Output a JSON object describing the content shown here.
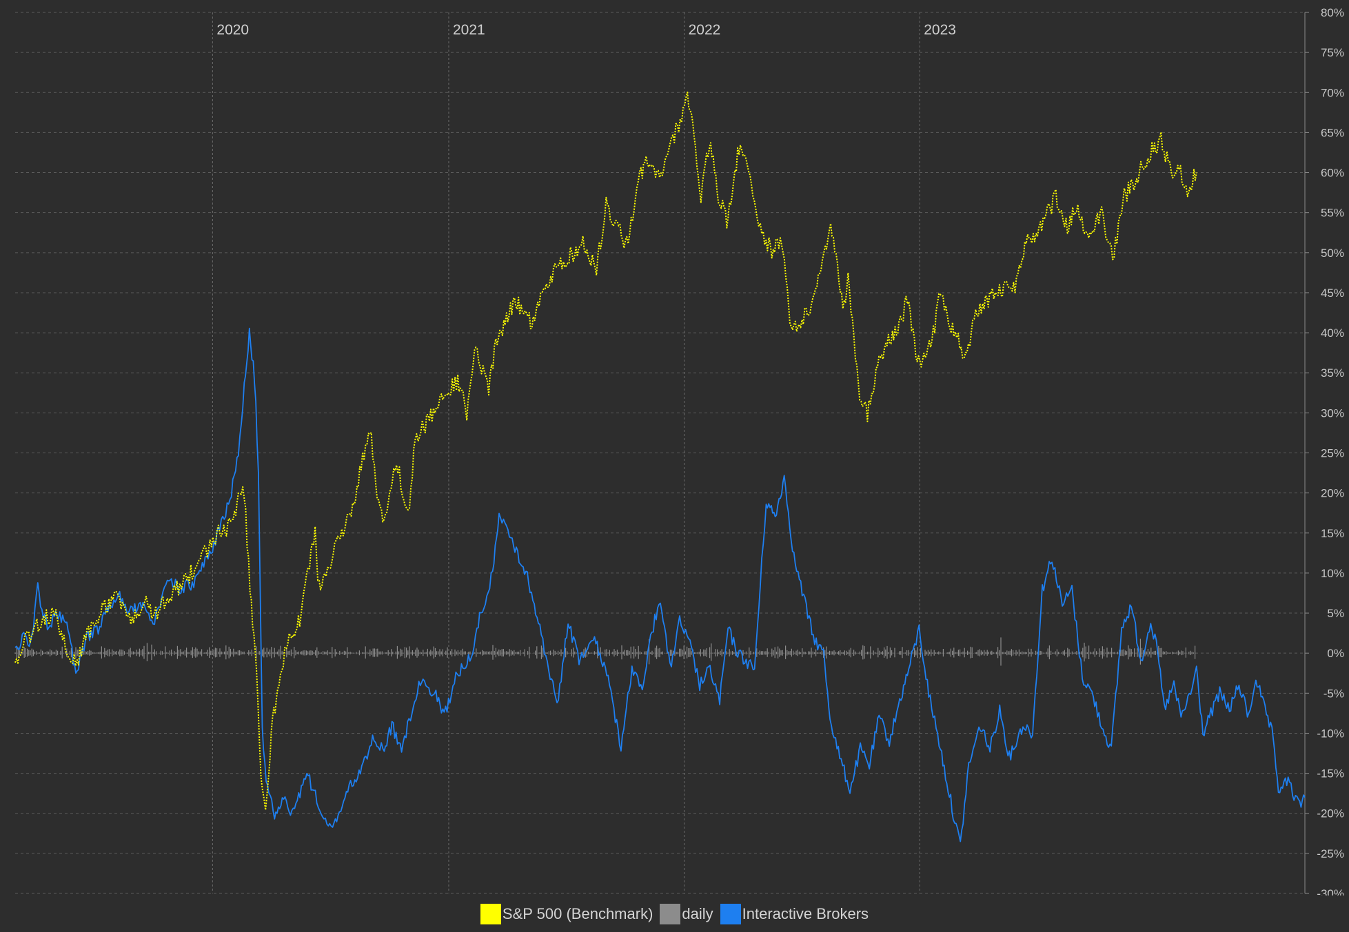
{
  "chart_data": {
    "type": "line",
    "x_axis": {
      "ticks": [
        "2020",
        "2021",
        "2022",
        "2023"
      ]
    },
    "y_axis": {
      "ylim": [
        -30,
        80
      ],
      "ticks": [
        "80%",
        "75%",
        "70%",
        "65%",
        "60%",
        "55%",
        "50%",
        "45%",
        "40%",
        "35%",
        "30%",
        "25%",
        "20%",
        "15%",
        "10%",
        "5%",
        "0%",
        "-5%",
        "-10%",
        "-15%",
        "-20%",
        "-25%",
        "-30%"
      ]
    },
    "grid": true,
    "legend_position": "bottom-center",
    "series": [
      {
        "name": "S&P 500 (Benchmark)",
        "color": "#ffff00",
        "style": "dotted",
        "points": [
          [
            "2019-03-01",
            -1
          ],
          [
            "2019-03-20",
            2
          ],
          [
            "2019-04-10",
            4
          ],
          [
            "2019-05-01",
            5
          ],
          [
            "2019-05-20",
            0
          ],
          [
            "2019-06-05",
            -1
          ],
          [
            "2019-06-25",
            3
          ],
          [
            "2019-07-20",
            6
          ],
          [
            "2019-08-10",
            7
          ],
          [
            "2019-08-25",
            4
          ],
          [
            "2019-09-20",
            6
          ],
          [
            "2019-10-05",
            5
          ],
          [
            "2019-10-25",
            7
          ],
          [
            "2019-11-20",
            9
          ],
          [
            "2019-12-15",
            12
          ],
          [
            "2020-01-10",
            15
          ],
          [
            "2020-01-31",
            16
          ],
          [
            "2020-02-10",
            19
          ],
          [
            "2020-02-19",
            20
          ],
          [
            "2020-02-28",
            8
          ],
          [
            "2020-03-09",
            -2
          ],
          [
            "2020-03-16",
            -15
          ],
          [
            "2020-03-23",
            -20
          ],
          [
            "2020-04-01",
            -10
          ],
          [
            "2020-04-15",
            -2
          ],
          [
            "2020-05-01",
            2
          ],
          [
            "2020-05-15",
            4
          ],
          [
            "2020-06-08",
            15
          ],
          [
            "2020-06-12",
            8
          ],
          [
            "2020-06-25",
            10
          ],
          [
            "2020-07-15",
            14
          ],
          [
            "2020-08-05",
            18
          ],
          [
            "2020-08-25",
            26
          ],
          [
            "2020-09-03",
            28
          ],
          [
            "2020-09-10",
            20
          ],
          [
            "2020-09-23",
            16
          ],
          [
            "2020-10-12",
            24
          ],
          [
            "2020-10-30",
            17
          ],
          [
            "2020-11-10",
            27
          ],
          [
            "2020-11-30",
            29
          ],
          [
            "2020-12-31",
            33
          ],
          [
            "2021-01-15",
            34
          ],
          [
            "2021-01-29",
            30
          ],
          [
            "2021-02-12",
            38
          ],
          [
            "2021-03-04",
            33
          ],
          [
            "2021-03-15",
            39
          ],
          [
            "2021-04-15",
            44
          ],
          [
            "2021-05-12",
            41
          ],
          [
            "2021-05-28",
            46
          ],
          [
            "2021-06-30",
            49
          ],
          [
            "2021-07-28",
            51
          ],
          [
            "2021-08-18",
            48
          ],
          [
            "2021-09-02",
            56
          ],
          [
            "2021-09-15",
            54
          ],
          [
            "2021-10-04",
            51
          ],
          [
            "2021-10-22",
            59
          ],
          [
            "2021-11-05",
            62
          ],
          [
            "2021-11-26",
            59
          ],
          [
            "2021-12-10",
            63
          ],
          [
            "2021-12-28",
            67
          ],
          [
            "2022-01-04",
            70
          ],
          [
            "2022-01-12",
            68
          ],
          [
            "2022-01-27",
            57
          ],
          [
            "2022-02-09",
            64
          ],
          [
            "2022-02-23",
            57
          ],
          [
            "2022-03-08",
            54
          ],
          [
            "2022-03-29",
            64
          ],
          [
            "2022-04-13",
            60
          ],
          [
            "2022-04-29",
            53
          ],
          [
            "2022-05-19",
            50
          ],
          [
            "2022-06-01",
            52
          ],
          [
            "2022-06-16",
            40
          ],
          [
            "2022-07-15",
            43
          ],
          [
            "2022-08-16",
            53
          ],
          [
            "2022-09-06",
            43
          ],
          [
            "2022-09-12",
            47
          ],
          [
            "2022-09-30",
            32
          ],
          [
            "2022-10-12",
            30
          ],
          [
            "2022-11-01",
            37
          ],
          [
            "2022-11-30",
            41
          ],
          [
            "2022-12-13",
            44
          ],
          [
            "2022-12-28",
            36
          ],
          [
            "2023-01-20",
            39
          ],
          [
            "2023-02-02",
            45
          ],
          [
            "2023-02-23",
            40
          ],
          [
            "2023-03-13",
            37
          ],
          [
            "2023-03-31",
            43
          ],
          [
            "2023-04-28",
            45
          ],
          [
            "2023-05-31",
            46
          ],
          [
            "2023-06-15",
            51
          ],
          [
            "2023-07-07",
            53
          ],
          [
            "2023-07-31",
            57
          ],
          [
            "2023-08-18",
            53
          ],
          [
            "2023-09-01",
            56
          ],
          [
            "2023-09-20",
            52
          ],
          [
            "2023-10-10",
            55
          ],
          [
            "2023-10-27",
            49
          ],
          [
            "2023-11-14",
            57
          ],
          [
            "2023-12-01",
            59
          ],
          [
            "2023-12-27",
            63
          ],
          [
            "2024-01-10",
            64
          ],
          [
            "2024-01-26",
            60
          ],
          [
            "2024-02-05",
            61
          ],
          [
            "2024-02-20",
            58
          ],
          [
            "2024-03-05",
            60
          ]
        ]
      },
      {
        "name": "daily",
        "color": "#8c8c8c",
        "style": "solid",
        "points": [
          [
            "2019-03-01",
            0
          ],
          [
            "2024-03-05",
            0
          ]
        ]
      },
      {
        "name": "Interactive Brokers",
        "color": "#1e7ff0",
        "style": "solid",
        "points": [
          [
            "2019-03-01",
            0
          ],
          [
            "2019-03-12",
            2
          ],
          [
            "2019-03-25",
            1
          ],
          [
            "2019-04-05",
            8
          ],
          [
            "2019-04-20",
            3
          ],
          [
            "2019-05-05",
            5
          ],
          [
            "2019-05-20",
            4
          ],
          [
            "2019-06-03",
            -3
          ],
          [
            "2019-06-20",
            2
          ],
          [
            "2019-07-10",
            3
          ],
          [
            "2019-07-25",
            6
          ],
          [
            "2019-08-10",
            7
          ],
          [
            "2019-08-25",
            5
          ],
          [
            "2019-09-15",
            6
          ],
          [
            "2019-10-03",
            4
          ],
          [
            "2019-10-25",
            9
          ],
          [
            "2019-11-15",
            8
          ],
          [
            "2019-12-05",
            9
          ],
          [
            "2019-12-25",
            12
          ],
          [
            "2020-01-10",
            15
          ],
          [
            "2020-01-28",
            19
          ],
          [
            "2020-02-10",
            25
          ],
          [
            "2020-02-19",
            33
          ],
          [
            "2020-02-27",
            40
          ],
          [
            "2020-03-04",
            36
          ],
          [
            "2020-03-08",
            31
          ],
          [
            "2020-03-12",
            23
          ],
          [
            "2020-03-18",
            -10
          ],
          [
            "2020-03-26",
            -17
          ],
          [
            "2020-04-06",
            -20
          ],
          [
            "2020-04-18",
            -18
          ],
          [
            "2020-05-05",
            -20
          ],
          [
            "2020-05-26",
            -15
          ],
          [
            "2020-06-15",
            -19
          ],
          [
            "2020-07-05",
            -22
          ],
          [
            "2020-07-22",
            -18
          ],
          [
            "2020-08-15",
            -15
          ],
          [
            "2020-09-05",
            -11
          ],
          [
            "2020-09-23",
            -12
          ],
          [
            "2020-10-05",
            -9
          ],
          [
            "2020-10-20",
            -12
          ],
          [
            "2020-11-05",
            -7
          ],
          [
            "2020-11-20",
            -3
          ],
          [
            "2020-12-10",
            -5
          ],
          [
            "2020-12-25",
            -8
          ],
          [
            "2021-01-12",
            -3
          ],
          [
            "2021-02-05",
            0
          ],
          [
            "2021-02-20",
            5
          ],
          [
            "2021-03-10",
            10
          ],
          [
            "2021-03-20",
            17
          ],
          [
            "2021-04-05",
            15
          ],
          [
            "2021-04-20",
            12
          ],
          [
            "2021-05-05",
            9
          ],
          [
            "2021-05-20",
            4
          ],
          [
            "2021-06-05",
            -2
          ],
          [
            "2021-06-20",
            -6
          ],
          [
            "2021-07-05",
            4
          ],
          [
            "2021-07-22",
            -1
          ],
          [
            "2021-08-15",
            2
          ],
          [
            "2021-09-05",
            -3
          ],
          [
            "2021-09-25",
            -12
          ],
          [
            "2021-10-12",
            -2
          ],
          [
            "2021-10-28",
            -4
          ],
          [
            "2021-11-10",
            2
          ],
          [
            "2021-11-25",
            7
          ],
          [
            "2021-12-10",
            -2
          ],
          [
            "2021-12-25",
            4
          ],
          [
            "2022-01-10",
            1
          ],
          [
            "2022-01-25",
            -4
          ],
          [
            "2022-02-10",
            -2
          ],
          [
            "2022-02-25",
            -6
          ],
          [
            "2022-03-10",
            3
          ],
          [
            "2022-03-25",
            0
          ],
          [
            "2022-04-20",
            -2
          ],
          [
            "2022-05-08",
            19
          ],
          [
            "2022-05-22",
            17
          ],
          [
            "2022-06-05",
            22
          ],
          [
            "2022-06-20",
            12
          ],
          [
            "2022-07-05",
            7
          ],
          [
            "2022-07-20",
            2
          ],
          [
            "2022-08-05",
            0
          ],
          [
            "2022-08-15",
            -8
          ],
          [
            "2022-08-30",
            -13
          ],
          [
            "2022-09-15",
            -17
          ],
          [
            "2022-10-01",
            -12
          ],
          [
            "2022-10-15",
            -14
          ],
          [
            "2022-10-30",
            -8
          ],
          [
            "2022-11-15",
            -11
          ],
          [
            "2022-12-01",
            -6
          ],
          [
            "2022-12-15",
            -2
          ],
          [
            "2022-12-31",
            3
          ],
          [
            "2023-01-15",
            -5
          ],
          [
            "2023-01-31",
            -11
          ],
          [
            "2023-02-12",
            -16
          ],
          [
            "2023-02-22",
            -20
          ],
          [
            "2023-03-05",
            -24
          ],
          [
            "2023-03-18",
            -14
          ],
          [
            "2023-04-05",
            -9
          ],
          [
            "2023-04-20",
            -12
          ],
          [
            "2023-05-05",
            -7
          ],
          [
            "2023-05-20",
            -13
          ],
          [
            "2023-06-10",
            -9
          ],
          [
            "2023-06-25",
            -10
          ],
          [
            "2023-07-10",
            8
          ],
          [
            "2023-07-25",
            12
          ],
          [
            "2023-08-10",
            6
          ],
          [
            "2023-08-25",
            8
          ],
          [
            "2023-09-10",
            -3
          ],
          [
            "2023-09-25",
            -5
          ],
          [
            "2023-10-10",
            -9
          ],
          [
            "2023-10-25",
            -12
          ],
          [
            "2023-11-10",
            3
          ],
          [
            "2023-11-25",
            6
          ],
          [
            "2023-12-10",
            -1
          ],
          [
            "2023-12-25",
            4
          ],
          [
            "2024-01-05",
            0
          ],
          [
            "2024-01-15",
            -7
          ],
          [
            "2024-01-30",
            -4
          ],
          [
            "2024-02-10",
            -8
          ],
          [
            "2024-02-25",
            -5
          ],
          [
            "2024-03-05",
            -2
          ],
          [
            "2024-03-15",
            -10
          ],
          [
            "2024-03-25",
            -8
          ],
          [
            "2024-04-10",
            -5
          ],
          [
            "2024-04-25",
            -7
          ],
          [
            "2024-05-10",
            -4
          ],
          [
            "2024-05-25",
            -8
          ],
          [
            "2024-06-05",
            -3
          ],
          [
            "2024-06-15",
            -6
          ],
          [
            "2024-06-30",
            -10
          ],
          [
            "2024-07-10",
            -17
          ],
          [
            "2024-07-25",
            -16
          ],
          [
            "2024-08-10",
            -19
          ],
          [
            "2024-08-20",
            -18
          ]
        ]
      }
    ]
  },
  "legend": [
    {
      "label": "S&P 500 (Benchmark)",
      "color": "#ffff00"
    },
    {
      "label": "daily",
      "color": "#8c8c8c"
    },
    {
      "label": "Interactive Brokers",
      "color": "#1e7ff0"
    }
  ]
}
